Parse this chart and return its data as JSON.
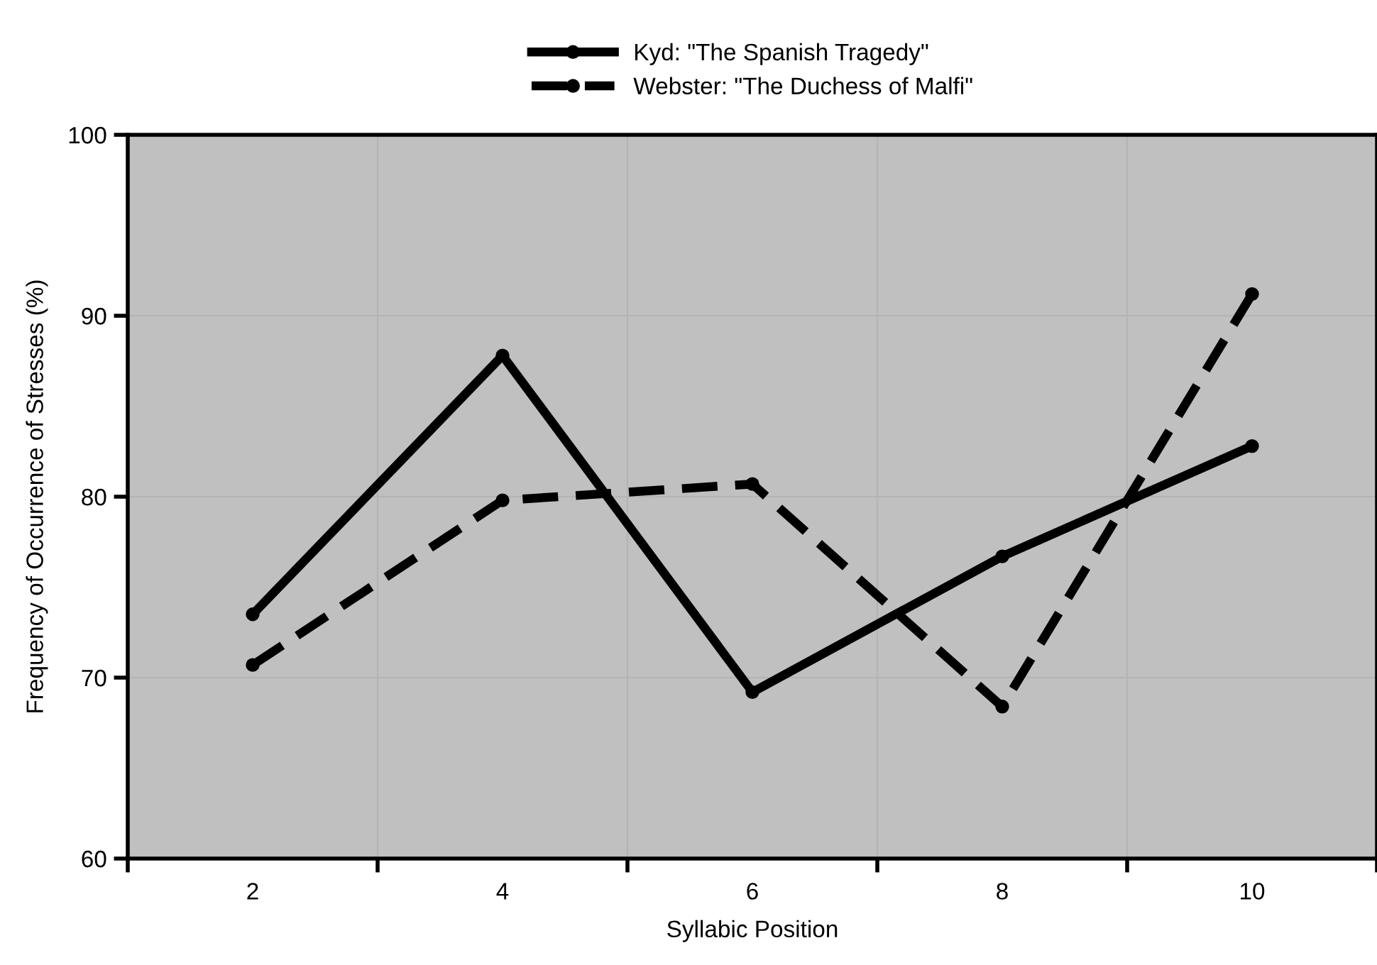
{
  "chart_data": {
    "type": "line",
    "xlabel": "Syllabic Position",
    "ylabel": "Frequency of Occurrence of Stresses (%)",
    "categories": [
      "2",
      "4",
      "6",
      "8",
      "10"
    ],
    "series": [
      {
        "name": "Kyd: \"The Spanish Tragedy\"",
        "color": "#000000",
        "values": [
          73.5,
          87.8,
          69.2,
          76.7,
          82.8
        ],
        "line_style": "solid"
      },
      {
        "name": "Webster: \"The Duchess of Malfi\"",
        "color": "#000000",
        "values": [
          70.7,
          79.8,
          80.7,
          68.4,
          91.2
        ],
        "line_style": "dashed"
      }
    ],
    "ylim": [
      60,
      100
    ],
    "yticks": [
      60,
      70,
      80,
      90,
      100
    ],
    "grid": true,
    "legend": "top",
    "marker": "circle"
  }
}
